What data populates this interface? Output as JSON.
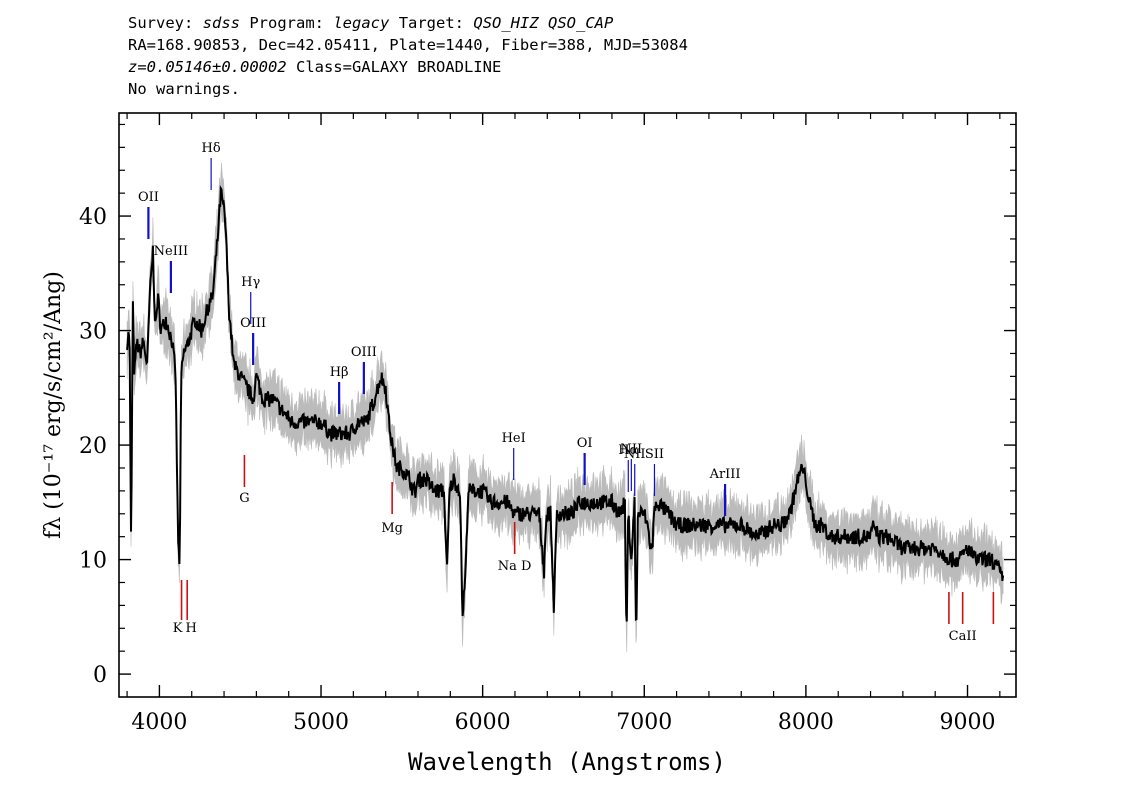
{
  "header": {
    "survey_label": "Survey:",
    "survey": "sdss",
    "program_label": "Program:",
    "program": "legacy",
    "target_label": "Target:",
    "target": "QSO_HIZ QSO_CAP",
    "coords": "RA=168.90853, Dec=42.05411, Plate=1440, Fiber=388, MJD=53084",
    "redshift": "z=0.05146±0.00002",
    "class": "Class=GALAXY BROADLINE",
    "warnings": "No warnings."
  },
  "colors": {
    "emission": "#1010c8",
    "absorption": "#d01010",
    "noise": "#bbbbbb",
    "flux": "#000000"
  },
  "chart_data": {
    "type": "line",
    "title": "",
    "xlabel": "Wavelength (Angstroms)",
    "ylabel": "fλ (10⁻¹⁷ erg/s/cm²/Ang)",
    "xlim": [
      3750,
      9300
    ],
    "ylim": [
      -2,
      49
    ],
    "xticks": [
      4000,
      5000,
      6000,
      7000,
      8000,
      9000
    ],
    "yticks": [
      0,
      10,
      20,
      30,
      40
    ],
    "xtick_labels": [
      "4000",
      "5000",
      "6000",
      "7000",
      "8000",
      "9000"
    ],
    "ytick_labels": [
      "0",
      "10",
      "20",
      "30",
      "40"
    ],
    "series": [
      {
        "name": "flux",
        "x": [
          3800,
          3815,
          3825,
          3835,
          3845,
          3860,
          3880,
          3900,
          3925,
          3940,
          3960,
          3975,
          3990,
          4010,
          4040,
          4080,
          4100,
          4115,
          4125,
          4135,
          4150,
          4180,
          4220,
          4260,
          4300,
          4330,
          4360,
          4380,
          4395,
          4410,
          4430,
          4460,
          4500,
          4540,
          4580,
          4600,
          4640,
          4700,
          4760,
          4820,
          4880,
          4950,
          5000,
          5060,
          5120,
          5180,
          5230,
          5280,
          5330,
          5370,
          5400,
          5420,
          5440,
          5470,
          5500,
          5550,
          5570,
          5585,
          5600,
          5650,
          5700,
          5760,
          5780,
          5795,
          5820,
          5860,
          5875,
          5895,
          5910,
          5950,
          6000,
          6050,
          6100,
          6150,
          6200,
          6250,
          6300,
          6350,
          6380,
          6390,
          6400,
          6420,
          6440,
          6460,
          6500,
          6550,
          6600,
          6650,
          6700,
          6750,
          6800,
          6850,
          6880,
          6890,
          6900,
          6920,
          6940,
          6950,
          6960,
          6980,
          7000,
          7020,
          7040,
          7050,
          7060,
          7080,
          7150,
          7200,
          7300,
          7400,
          7500,
          7600,
          7700,
          7800,
          7850,
          7900,
          7950,
          7975,
          8000,
          8020,
          8060,
          8100,
          8150,
          8200,
          8300,
          8400,
          8420,
          8450,
          8500,
          8600,
          8700,
          8800,
          8900,
          8950,
          9000,
          9050,
          9100,
          9150,
          9200,
          9220
        ],
        "values": [
          29,
          30,
          10,
          33,
          26,
          29,
          28,
          29,
          27,
          33,
          37,
          30,
          33,
          30,
          31,
          29,
          26,
          12,
          9,
          26,
          28,
          29,
          31,
          30,
          32,
          33,
          38,
          42,
          41,
          39,
          32,
          27,
          26,
          25,
          24,
          26,
          24,
          24,
          23,
          22,
          22,
          22,
          22,
          21,
          21,
          21,
          22,
          22,
          24,
          26,
          25,
          22,
          20,
          18,
          18,
          17,
          16,
          16,
          17,
          17,
          16,
          16,
          9,
          16,
          17,
          16,
          5,
          9,
          16,
          16,
          16,
          15,
          15,
          15,
          14,
          14,
          14,
          14,
          9,
          13,
          14,
          14,
          6,
          14,
          14,
          14,
          15,
          15,
          15,
          15,
          15,
          14,
          15,
          2,
          14,
          10,
          15,
          2,
          14,
          14,
          14,
          13,
          11,
          11,
          14,
          15,
          14,
          13,
          13,
          13,
          13,
          13,
          12,
          13,
          13,
          14,
          17,
          18,
          17,
          15,
          13,
          13,
          12,
          12,
          12,
          12,
          13,
          12,
          12,
          11,
          11,
          11,
          10,
          10,
          11,
          10,
          10,
          10,
          9,
          8
        ]
      }
    ],
    "lines": [
      {
        "name": "OII",
        "wavelength": 3932,
        "type": "emission"
      },
      {
        "name": "NeIII",
        "wavelength": 4071,
        "type": "emission"
      },
      {
        "name": "Hδ",
        "wavelength": 4320,
        "type": "emission"
      },
      {
        "name": "Hγ",
        "wavelength": 4565,
        "type": "emission"
      },
      {
        "name": "OIII",
        "wavelength": 4580,
        "type": "emission"
      },
      {
        "name": "Hβ",
        "wavelength": 5112,
        "type": "emission"
      },
      {
        "name": "OIII",
        "wavelength": 5265,
        "type": "emission"
      },
      {
        "name": "HeI",
        "wavelength": 6192,
        "type": "emission"
      },
      {
        "name": "OI",
        "wavelength": 6631,
        "type": "emission"
      },
      {
        "name": "NII",
        "wavelength": 6920,
        "type": "emission"
      },
      {
        "name": "Hα",
        "wavelength": 6901,
        "type": "emission"
      },
      {
        "name": "NII",
        "wavelength": 6941,
        "type": "emission"
      },
      {
        "name": "SII",
        "wavelength": 7063,
        "type": "emission"
      },
      {
        "name": "ArIII",
        "wavelength": 7500,
        "type": "emission"
      },
      {
        "name": "K",
        "wavelength": 4137,
        "type": "absorption"
      },
      {
        "name": "H",
        "wavelength": 4172,
        "type": "absorption"
      },
      {
        "name": "G",
        "wavelength": 4526,
        "type": "absorption"
      },
      {
        "name": "Mg",
        "wavelength": 5440,
        "type": "absorption"
      },
      {
        "name": "Na D",
        "wavelength": 6198,
        "type": "absorption"
      },
      {
        "name": "CaII",
        "wavelength": 8970,
        "type": "absorption"
      }
    ]
  }
}
